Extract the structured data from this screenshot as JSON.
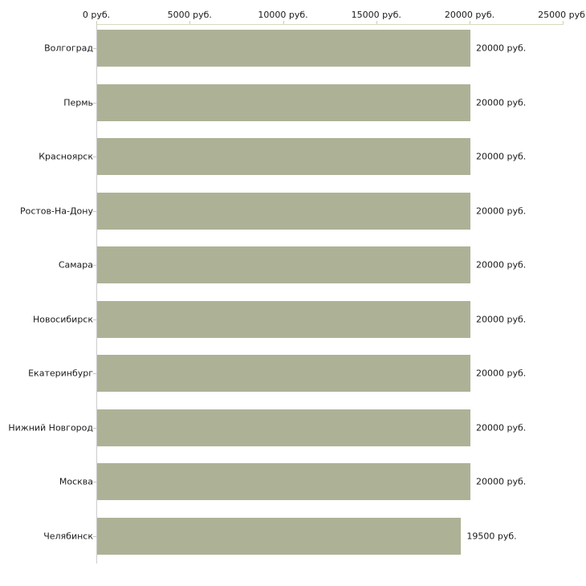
{
  "chart_data": {
    "type": "bar",
    "orientation": "horizontal",
    "title": "",
    "xlabel": "",
    "ylabel": "",
    "categories": [
      "Волгоград",
      "Пермь",
      "Красноярск",
      "Ростов-На-Дону",
      "Самара",
      "Новосибирск",
      "Екатеринбург",
      "Нижний Новгород",
      "Москва",
      "Челябинск"
    ],
    "values": [
      20000,
      20000,
      20000,
      20000,
      20000,
      20000,
      20000,
      20000,
      20000,
      19500
    ],
    "value_labels": [
      "20000 руб.",
      "20000 руб.",
      "20000 руб.",
      "20000 руб.",
      "20000 руб.",
      "20000 руб.",
      "20000 руб.",
      "20000 руб.",
      "20000 руб.",
      "19500 руб."
    ],
    "x_ticks": [
      0,
      5000,
      10000,
      15000,
      20000,
      25000
    ],
    "x_tick_labels": [
      "0 руб.",
      "5000 руб.",
      "10000 руб.",
      "15000 руб.",
      "20000 руб.",
      "25000 руб."
    ],
    "xlim": [
      0,
      25000
    ],
    "grid": false,
    "legend": null,
    "bar_color": "#adb297",
    "axis_line_color": "#d8dabc",
    "y_axis_line_color": "#cccccc",
    "text_color": "#1a1a1a"
  }
}
